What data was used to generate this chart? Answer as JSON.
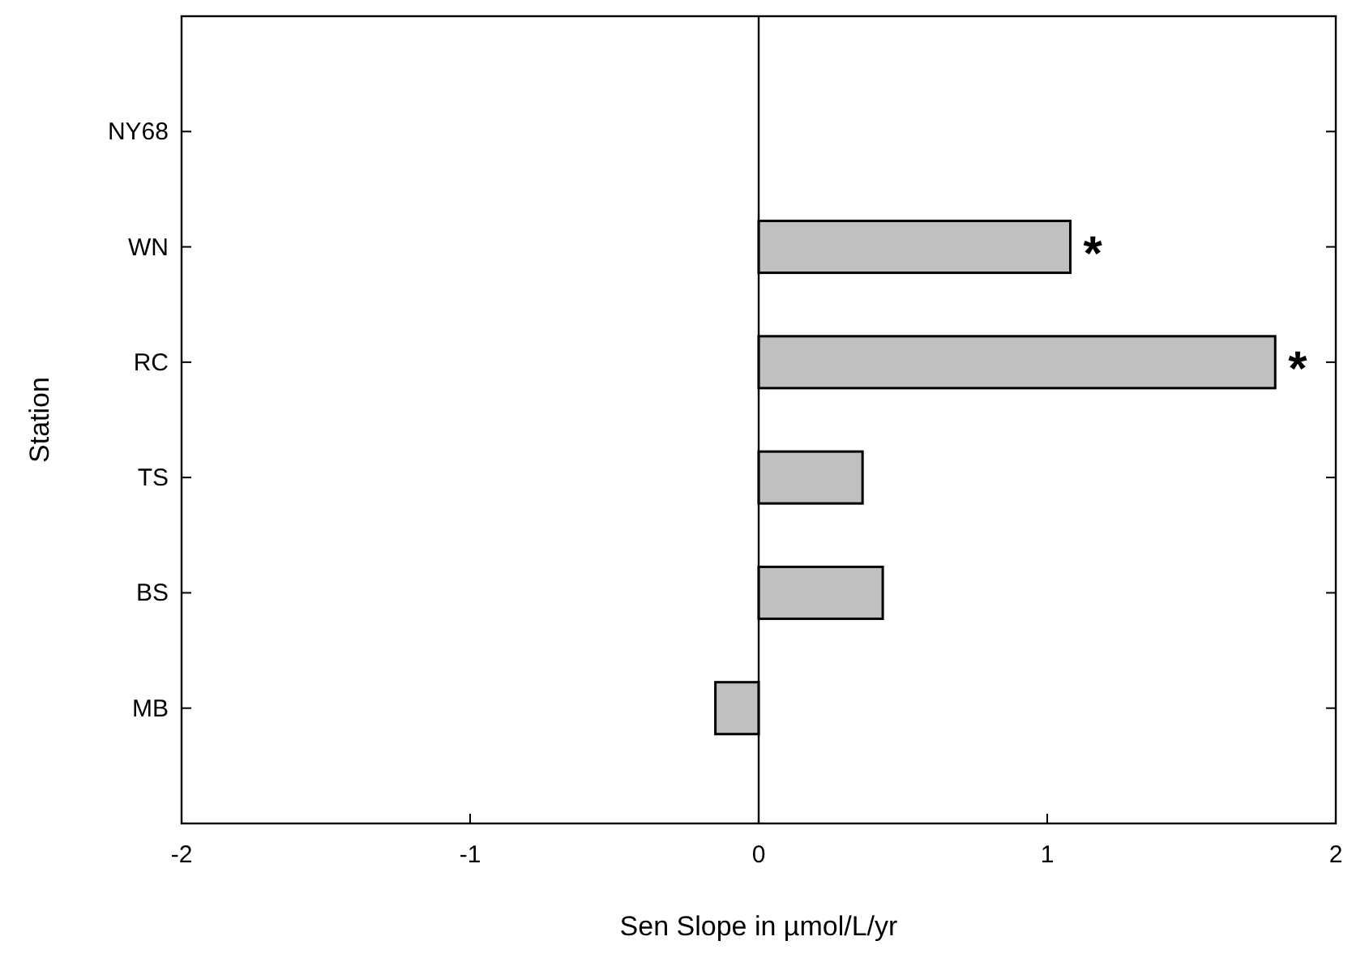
{
  "chart_data": {
    "type": "bar",
    "orientation": "horizontal",
    "xlabel": "Sen Slope in µmol/L/yr",
    "ylabel": "Station",
    "categories": [
      "NY68",
      "WN",
      "RC",
      "TS",
      "BS",
      "MB"
    ],
    "values": [
      null,
      1.08,
      1.79,
      0.36,
      0.43,
      -0.15
    ],
    "color": "#c0c0c0",
    "xlim": [
      -2,
      2
    ],
    "xticks": [
      -2,
      -1,
      0,
      1,
      2
    ],
    "grid": false,
    "ref_lines": [
      {
        "axis": "x",
        "value": 0,
        "color": "#000000"
      }
    ],
    "annotations": [
      {
        "text": "*",
        "x": 1.08,
        "y": "WN"
      },
      {
        "text": "*",
        "x": 1.79,
        "y": "RC"
      }
    ]
  }
}
